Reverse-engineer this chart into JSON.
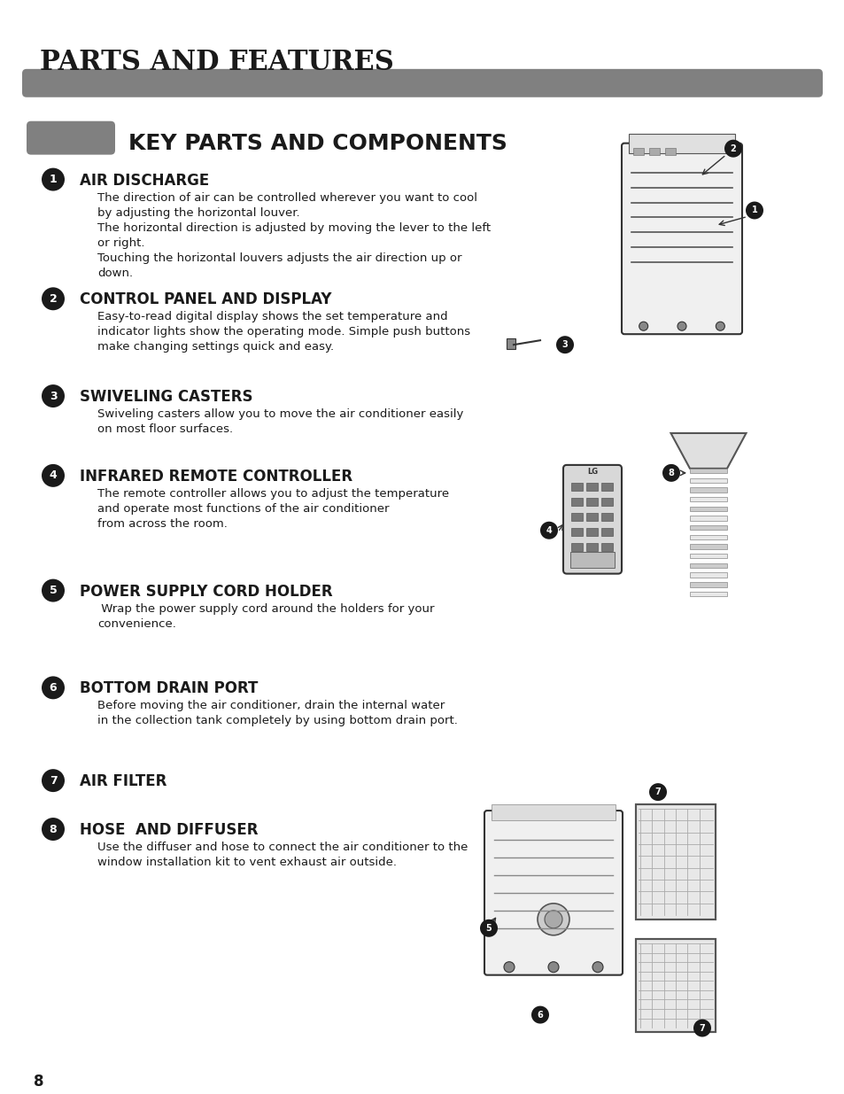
{
  "page_title": "PARTS AND FEATURES",
  "section_title": "KEY PARTS AND COMPONENTS",
  "background_color": "#ffffff",
  "header_bar_color": "#808080",
  "section_bar_color": "#808080",
  "bullet_color": "#1a1a1a",
  "items": [
    {
      "num": "1",
      "title": "AIR DISCHARGE",
      "body": "The direction of air can be controlled wherever you want to cool\nby adjusting the horizontal louver.\nThe horizontal direction is adjusted by moving the lever to the left\nor right.\nTouching the horizontal louvers adjusts the air direction up or\ndown."
    },
    {
      "num": "2",
      "title": "CONTROL PANEL AND DISPLAY",
      "body": "Easy-to-read digital display shows the set temperature and\nindicator lights show the operating mode. Simple push buttons\nmake changing settings quick and easy."
    },
    {
      "num": "3",
      "title": "SWIVELING CASTERS",
      "body": "Swiveling casters allow you to move the air conditioner easily\non most floor surfaces."
    },
    {
      "num": "4",
      "title": "INFRARED REMOTE CONTROLLER",
      "body": "The remote controller allows you to adjust the temperature\nand operate most functions of the air conditioner\nfrom across the room."
    },
    {
      "num": "5",
      "title": "POWER SUPPLY CORD HOLDER",
      "body": " Wrap the power supply cord around the holders for your\nconvenience."
    },
    {
      "num": "6",
      "title": "BOTTOM DRAIN PORT",
      "body": "Before moving the air conditioner, drain the internal water\nin the collection tank completely by using bottom drain port."
    },
    {
      "num": "7",
      "title": "AIR FILTER",
      "body": ""
    },
    {
      "num": "8",
      "title": "HOSE  AND DIFFUSER",
      "body": "Use the diffuser and hose to connect the air conditioner to the\nwindow installation kit to vent exhaust air outside."
    }
  ],
  "page_number": "8"
}
